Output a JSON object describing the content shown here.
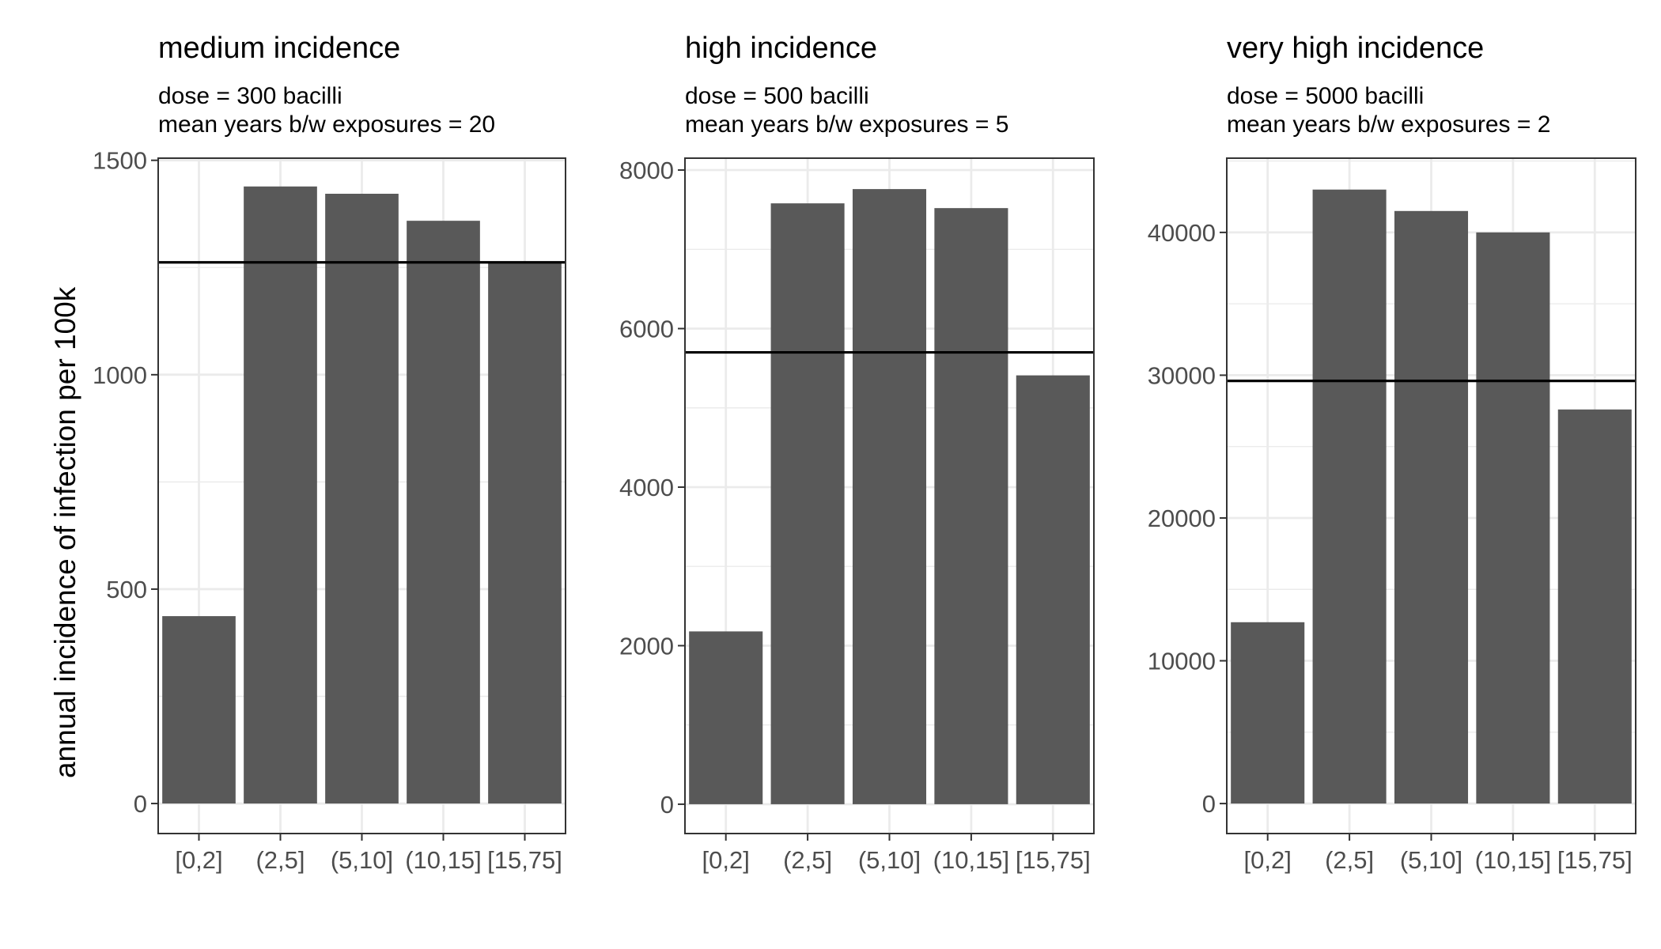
{
  "ylabel": "annual incidence of infection per 100k",
  "chart_data": [
    {
      "type": "bar",
      "title": "medium incidence",
      "subtitle_lines": [
        "dose = 300 bacilli",
        "mean years b/w exposures = 20"
      ],
      "categories": [
        "[0,2]",
        "(2,5]",
        "(5,10]",
        "(10,15]",
        "[15,75]"
      ],
      "values": [
        437,
        1439,
        1422,
        1359,
        1262
      ],
      "reference_line": 1262,
      "ylim": [
        -70,
        1505
      ],
      "yticks": [
        0,
        500,
        1000,
        1500
      ],
      "ylabel": "annual incidence of infection per 100k",
      "grid": true,
      "legend": "none"
    },
    {
      "type": "bar",
      "title": "high incidence",
      "subtitle_lines": [
        "dose = 500 bacilli",
        "mean years b/w exposures = 5"
      ],
      "categories": [
        "[0,2]",
        "(2,5]",
        "(5,10]",
        "(10,15]",
        "[15,75]"
      ],
      "values": [
        2180,
        7580,
        7760,
        7520,
        5410
      ],
      "reference_line": 5700,
      "ylim": [
        -370,
        8150
      ],
      "yticks": [
        0,
        2000,
        4000,
        6000,
        8000
      ],
      "grid": true,
      "legend": "none"
    },
    {
      "type": "bar",
      "title": "very high incidence",
      "subtitle_lines": [
        "dose = 5000 bacilli",
        "mean years b/w exposures = 2"
      ],
      "categories": [
        "[0,2]",
        "(2,5]",
        "(5,10]",
        "(10,15]",
        "[15,75]"
      ],
      "values": [
        12700,
        43000,
        41500,
        40000,
        27600
      ],
      "reference_line": 29600,
      "ylim": [
        -2100,
        45200
      ],
      "yticks": [
        0,
        10000,
        20000,
        30000,
        40000
      ],
      "grid": true,
      "legend": "none"
    }
  ],
  "colors": {
    "bar": "#595959",
    "grid": "#ebebeb",
    "panel_border": "#333333",
    "reference_line": "#000000",
    "tick_text": "#4d4d4d"
  }
}
